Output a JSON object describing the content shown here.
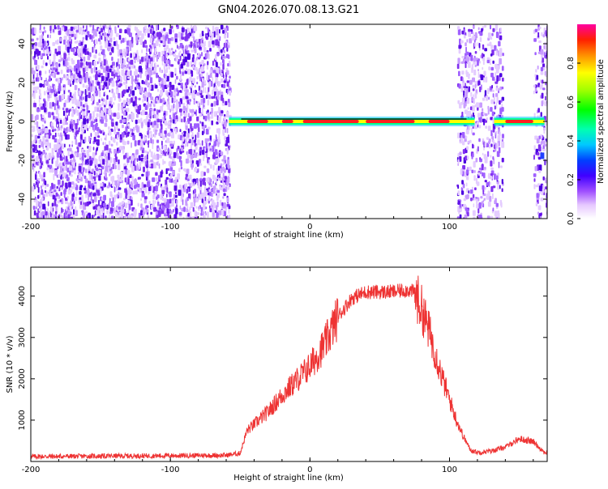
{
  "title": "GN04.2026.070.08.13.G21",
  "chart_data": [
    {
      "type": "heatmap",
      "xlabel": "Height of straight line (km)",
      "ylabel": "Frequency (Hz)",
      "xlim": [
        -200,
        170
      ],
      "ylim": [
        -50,
        50
      ],
      "xticks": [
        -200,
        -100,
        0,
        100
      ],
      "yticks": [
        -40,
        -20,
        0,
        20,
        40
      ],
      "colorbar": {
        "label": "Normalized spectral amplitude",
        "range": [
          0,
          1
        ],
        "ticks": [
          0.0,
          0.2,
          0.4,
          0.6,
          0.8
        ]
      },
      "regions": [
        {
          "name": "noise",
          "x": [
            -200,
            -58
          ],
          "density": 0.55
        },
        {
          "name": "noise",
          "x": [
            105,
            138
          ],
          "density": 0.35
        },
        {
          "name": "noise",
          "x": [
            160,
            170
          ],
          "density": 0.35
        }
      ],
      "carrier": {
        "frequency": 0,
        "x": [
          -58,
          168
        ],
        "gap": [
          118,
          132
        ]
      }
    },
    {
      "type": "line",
      "xlabel": "Height of straight line (km)",
      "ylabel": "SNR (10 * v/v)",
      "xlim": [
        -200,
        170
      ],
      "ylim": [
        0,
        4700
      ],
      "xticks": [
        -200,
        -100,
        0,
        100
      ],
      "yticks": [
        1000,
        2000,
        3000,
        4000
      ],
      "series": [
        {
          "name": "SNR",
          "color": "#ee3333",
          "x": [
            -200,
            -150,
            -100,
            -60,
            -50,
            -45,
            -40,
            -30,
            -20,
            -10,
            0,
            10,
            20,
            30,
            40,
            50,
            60,
            70,
            75,
            80,
            85,
            90,
            95,
            100,
            105,
            110,
            115,
            120,
            130,
            140,
            150,
            160,
            168
          ],
          "y": [
            120,
            130,
            140,
            150,
            200,
            750,
            900,
            1200,
            1600,
            1950,
            2300,
            2800,
            3500,
            3950,
            4100,
            4100,
            4100,
            4150,
            4100,
            3700,
            3200,
            2600,
            2000,
            1500,
            1000,
            600,
            280,
            220,
            250,
            350,
            550,
            480,
            220
          ]
        }
      ]
    }
  ]
}
